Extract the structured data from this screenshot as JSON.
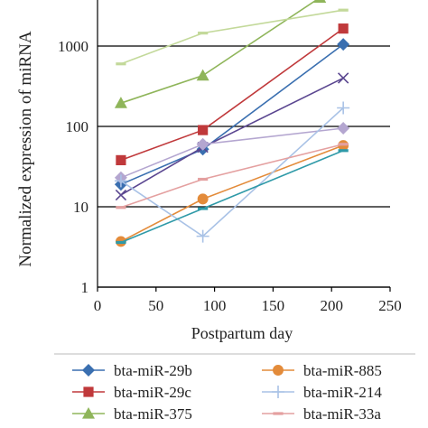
{
  "chart_data": {
    "type": "line",
    "title": "",
    "xlabel": "Postpartum day",
    "ylabel": "Normalized expression of miRNA",
    "xlim": [
      0,
      250
    ],
    "ylim": [
      1,
      4000
    ],
    "yscale": "log",
    "grid": "horizontal",
    "legend_placement": "bottom",
    "x_ticks": [
      0,
      50,
      100,
      150,
      200,
      250
    ],
    "y_ticks": [
      1,
      10,
      100,
      1000
    ],
    "series": [
      {
        "name": "bta-miR-29b",
        "color": "#3a6fb0",
        "marker": "diamond",
        "points": [
          [
            20,
            19
          ],
          [
            90,
            52
          ],
          [
            210,
            1050
          ]
        ]
      },
      {
        "name": "bta-miR-29c",
        "color": "#c0393b",
        "marker": "square",
        "points": [
          [
            20,
            38
          ],
          [
            90,
            90
          ],
          [
            210,
            1650
          ]
        ]
      },
      {
        "name": "bta-miR-375",
        "color": "#8fb55a",
        "marker": "triangle",
        "points": [
          [
            20,
            195
          ],
          [
            90,
            430
          ],
          [
            190,
            4000
          ]
        ]
      },
      {
        "name": "",
        "color": "#c3d99a",
        "marker": "dash",
        "points": [
          [
            20,
            600
          ],
          [
            90,
            1450
          ],
          [
            210,
            2800
          ]
        ]
      },
      {
        "name": "",
        "color": "#5a4690",
        "marker": "x",
        "points": [
          [
            20,
            14
          ],
          [
            90,
            55
          ],
          [
            210,
            400
          ]
        ]
      },
      {
        "name": "",
        "color": "#b4a6d0",
        "marker": "diamond",
        "points": [
          [
            20,
            23
          ],
          [
            90,
            60
          ],
          [
            210,
            95
          ]
        ]
      },
      {
        "name": "bta-miR-885",
        "color": "#e38b3a",
        "marker": "circle",
        "points": [
          [
            20,
            3.7
          ],
          [
            90,
            12.5
          ],
          [
            210,
            58
          ]
        ]
      },
      {
        "name": "bta-miR-214",
        "color": "#a9c2e6",
        "marker": "plus",
        "points": [
          [
            20,
            21
          ],
          [
            90,
            4.3
          ],
          [
            210,
            170
          ]
        ]
      },
      {
        "name": "bta-miR-33a",
        "color": "#e4a0a0",
        "marker": "dash",
        "points": [
          [
            20,
            9.8
          ],
          [
            90,
            22
          ],
          [
            210,
            60
          ]
        ]
      },
      {
        "name": "",
        "color": "#2f9aa8",
        "marker": "dash",
        "points": [
          [
            20,
            3.6
          ],
          [
            90,
            9.5
          ],
          [
            210,
            50
          ]
        ]
      }
    ]
  }
}
